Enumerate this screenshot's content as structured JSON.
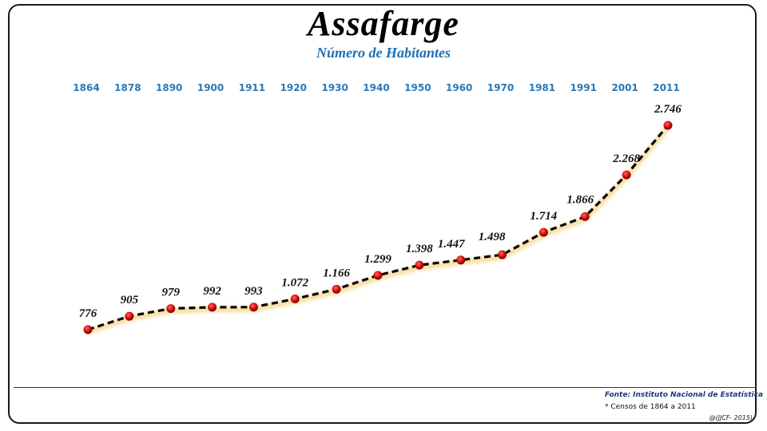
{
  "header": {
    "title": "Assafarge",
    "subtitle": "Número de Habitantes"
  },
  "footer": {
    "source": "Fonte: Instituto Nacional de Estatística",
    "note": "* Censos de 1864 a 2011",
    "credit": "@(JJCF- 2015)"
  },
  "colors": {
    "title": "#000000",
    "subtitle": "#1f6fb4",
    "year_labels": "#2a78b8",
    "line": "#000000",
    "markers": "#d01010",
    "glow": "#f5d27a"
  },
  "chart_data": {
    "type": "line",
    "title": "Assafarge",
    "subtitle": "Número de Habitantes",
    "xlabel": "",
    "ylabel": "",
    "categories": [
      "1864",
      "1878",
      "1890",
      "1900",
      "1911",
      "1920",
      "1930",
      "1940",
      "1950",
      "1960",
      "1970",
      "1981",
      "1991",
      "2001",
      "2011"
    ],
    "series": [
      {
        "name": "Número de Habitantes",
        "values": [
          776,
          905,
          979,
          992,
          993,
          1072,
          1166,
          1299,
          1398,
          1447,
          1498,
          1714,
          1866,
          2268,
          2746
        ],
        "display_labels": [
          "776",
          "905",
          "979",
          "992",
          "993",
          "1.072",
          "1.166",
          "1.299",
          "1.398",
          "1.447",
          "1.498",
          "1.714",
          "1.866",
          "2.268",
          "2.746"
        ]
      }
    ],
    "x_axis_position": "top",
    "grid": false,
    "legend": "none",
    "line_style": "dashed",
    "marker": "red circle",
    "annotations": [
      "Fonte: Instituto Nacional de Estatística",
      "* Censos de 1864 a 2011",
      "@(JJCF- 2015)"
    ]
  }
}
